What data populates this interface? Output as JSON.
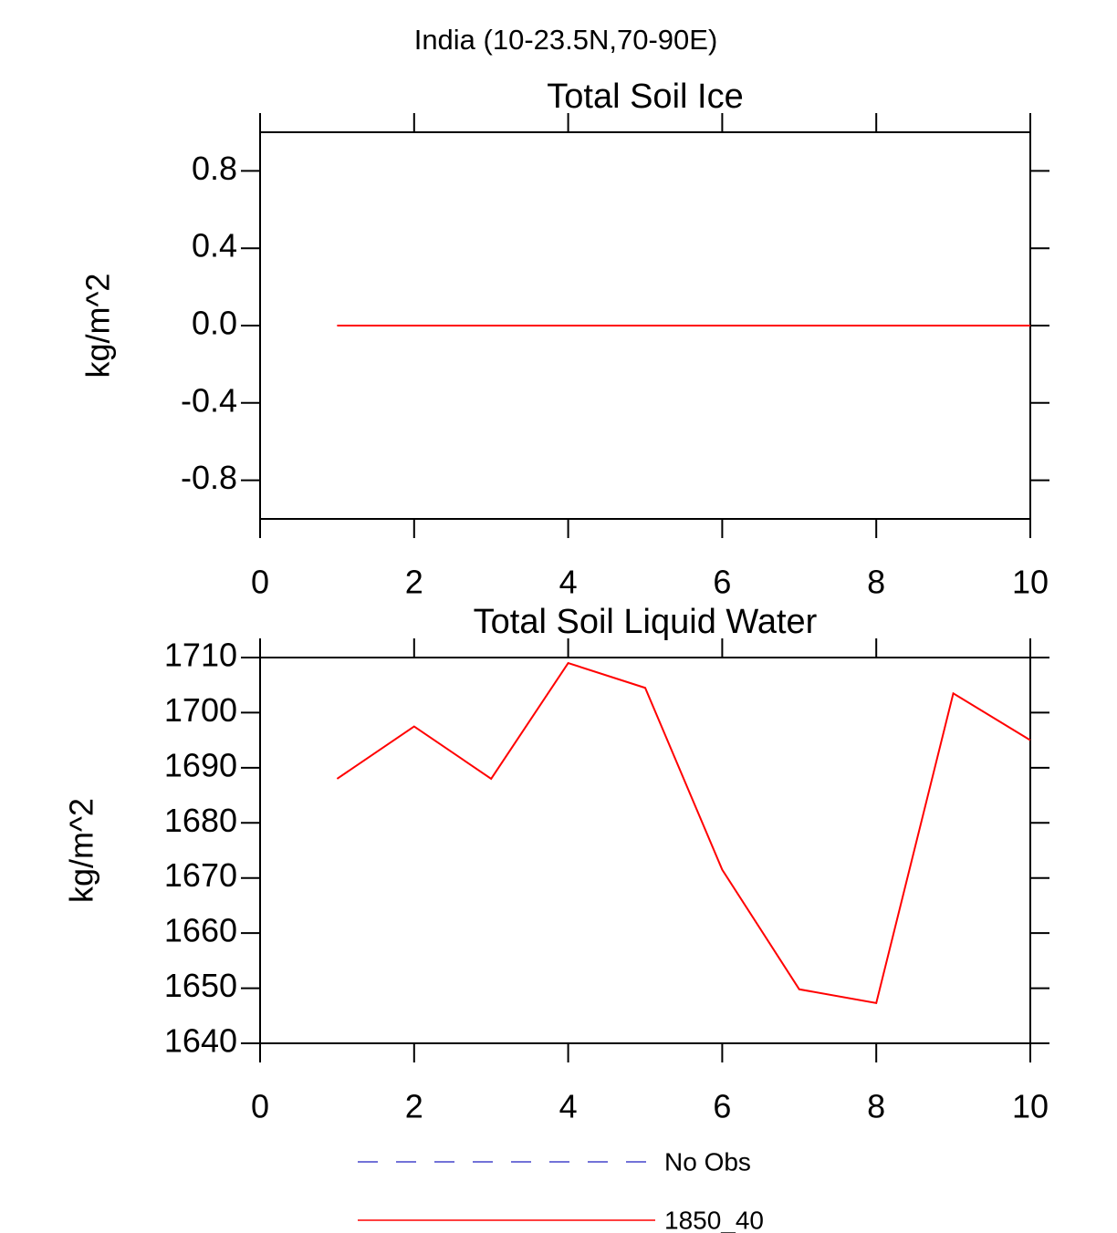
{
  "title": "India (10-23.5N,70-90E)",
  "chart_data": [
    {
      "type": "line",
      "title": "Total Soil Ice",
      "ylabel": "kg/m^2",
      "x": [
        1,
        2,
        3,
        4,
        5,
        6,
        7,
        8,
        9,
        10
      ],
      "series": [
        {
          "color": "#ff0000",
          "values": [
            0,
            0,
            0,
            0,
            0,
            0,
            0,
            0,
            0,
            0
          ]
        }
      ],
      "xlim": [
        0,
        10
      ],
      "xticks": [
        0,
        2,
        4,
        6,
        8,
        10
      ],
      "ylim": [
        -1,
        1
      ],
      "yticks": [
        -0.8,
        -0.4,
        {
          "value": 0,
          "label": "0.0"
        },
        0.4,
        0.8
      ]
    },
    {
      "type": "line",
      "title": "Total Soil Liquid Water",
      "ylabel": "kg/m^2",
      "x": [
        1,
        2,
        3,
        4,
        5,
        6,
        7,
        8,
        9,
        10
      ],
      "series": [
        {
          "color": "#ff0000",
          "values": [
            1688,
            1697.5,
            1688,
            1709,
            1704.5,
            1671.5,
            1649.8,
            1647.3,
            1703.5,
            1695
          ]
        }
      ],
      "xlim": [
        0,
        10
      ],
      "xticks": [
        0,
        2,
        4,
        6,
        8,
        10
      ],
      "ylim": [
        1640,
        1710
      ],
      "yticks": [
        1640,
        1650,
        1660,
        1670,
        1680,
        1690,
        1700,
        1710
      ]
    }
  ],
  "legend": [
    {
      "name": "No Obs",
      "color": "#4444cc",
      "dash": true
    },
    {
      "name": "1850_40",
      "color": "#ff0000",
      "dash": false
    }
  ]
}
